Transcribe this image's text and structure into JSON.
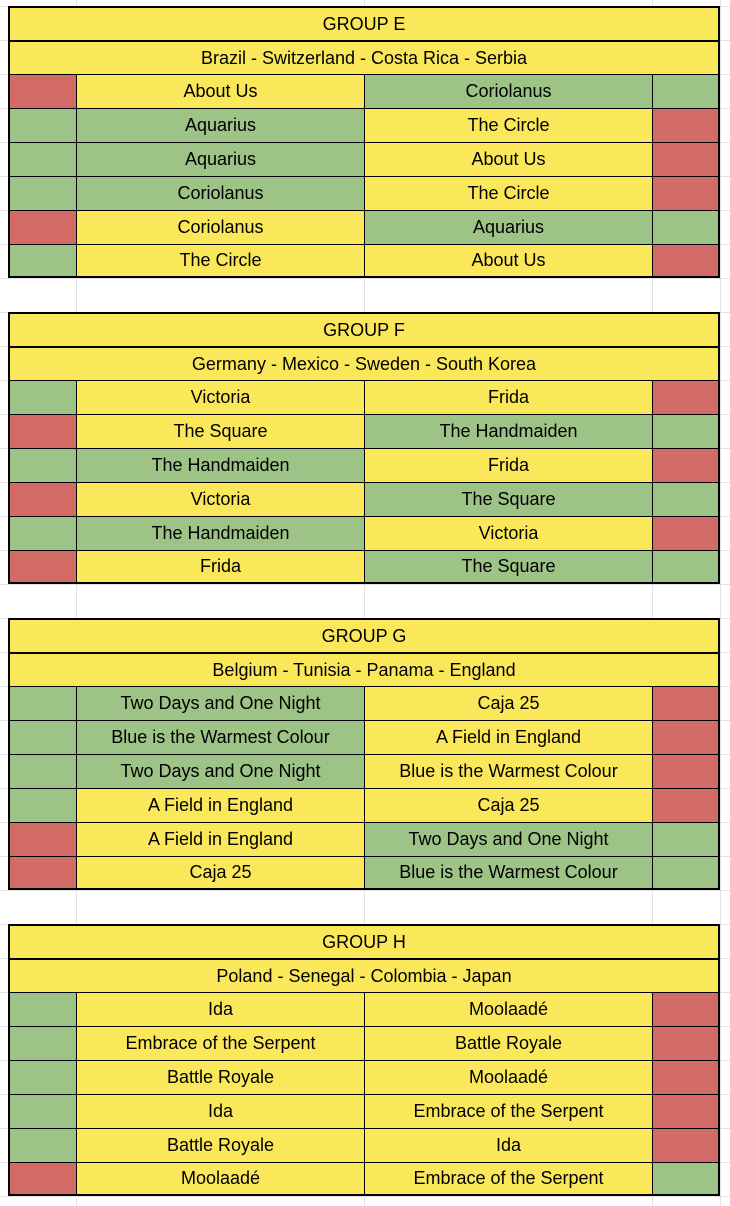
{
  "colors": {
    "yellow": "#fbe85a",
    "green": "#9dc386",
    "red": "#d26b66"
  },
  "groups": [
    {
      "title": "GROUP E",
      "teams": "Brazil - Switzerland - Costa Rica - Serbia",
      "matches": [
        {
          "left": "About Us",
          "right": "Coriolanus",
          "result": [
            "red",
            "yellow",
            "green",
            "green"
          ]
        },
        {
          "left": "Aquarius",
          "right": "The Circle",
          "result": [
            "green",
            "green",
            "yellow",
            "red"
          ]
        },
        {
          "left": "Aquarius",
          "right": "About Us",
          "result": [
            "green",
            "green",
            "yellow",
            "red"
          ]
        },
        {
          "left": "Coriolanus",
          "right": "The Circle",
          "result": [
            "green",
            "green",
            "yellow",
            "red"
          ]
        },
        {
          "left": "Coriolanus",
          "right": "Aquarius",
          "result": [
            "red",
            "yellow",
            "green",
            "green"
          ]
        },
        {
          "left": "The Circle",
          "right": "About Us",
          "result": [
            "green",
            "yellow",
            "yellow",
            "red"
          ]
        }
      ]
    },
    {
      "title": "GROUP F",
      "teams": "Germany - Mexico - Sweden - South Korea",
      "matches": [
        {
          "left": "Victoria",
          "right": "Frida",
          "result": [
            "green",
            "yellow",
            "yellow",
            "red"
          ]
        },
        {
          "left": "The Square",
          "right": "The Handmaiden",
          "result": [
            "red",
            "yellow",
            "green",
            "green"
          ]
        },
        {
          "left": "The Handmaiden",
          "right": "Frida",
          "result": [
            "green",
            "green",
            "yellow",
            "red"
          ]
        },
        {
          "left": "Victoria",
          "right": "The Square",
          "result": [
            "red",
            "yellow",
            "green",
            "green"
          ]
        },
        {
          "left": "The Handmaiden",
          "right": "Victoria",
          "result": [
            "green",
            "green",
            "yellow",
            "red"
          ]
        },
        {
          "left": "Frida",
          "right": "The Square",
          "result": [
            "red",
            "yellow",
            "green",
            "green"
          ]
        }
      ]
    },
    {
      "title": "GROUP G",
      "teams": "Belgium - Tunisia - Panama - England",
      "matches": [
        {
          "left": "Two Days and One Night",
          "right": "Caja 25",
          "result": [
            "green",
            "green",
            "yellow",
            "red"
          ]
        },
        {
          "left": "Blue is the Warmest Colour",
          "right": "A Field in England",
          "result": [
            "green",
            "green",
            "yellow",
            "red"
          ]
        },
        {
          "left": "Two Days and One Night",
          "right": "Blue is the Warmest Colour",
          "result": [
            "green",
            "green",
            "yellow",
            "red"
          ]
        },
        {
          "left": "A Field in England",
          "right": "Caja 25",
          "result": [
            "green",
            "yellow",
            "yellow",
            "red"
          ]
        },
        {
          "left": "A Field in England",
          "right": "Two Days and One Night",
          "result": [
            "red",
            "yellow",
            "green",
            "green"
          ]
        },
        {
          "left": "Caja 25",
          "right": "Blue is the Warmest Colour",
          "result": [
            "red",
            "yellow",
            "green",
            "green"
          ]
        }
      ]
    },
    {
      "title": "GROUP H",
      "teams": "Poland - Senegal - Colombia - Japan",
      "matches": [
        {
          "left": "Ida",
          "right": "Moolaadé",
          "result": [
            "green",
            "yellow",
            "yellow",
            "red"
          ]
        },
        {
          "left": "Embrace of the Serpent",
          "right": "Battle Royale",
          "result": [
            "green",
            "yellow",
            "yellow",
            "red"
          ]
        },
        {
          "left": "Battle Royale",
          "right": "Moolaadé",
          "result": [
            "green",
            "yellow",
            "yellow",
            "red"
          ]
        },
        {
          "left": "Ida",
          "right": "Embrace of the Serpent",
          "result": [
            "green",
            "yellow",
            "yellow",
            "red"
          ]
        },
        {
          "left": "Battle Royale",
          "right": "Ida",
          "result": [
            "green",
            "yellow",
            "yellow",
            "red"
          ]
        },
        {
          "left": "Moolaadé",
          "right": "Embrace of the Serpent",
          "result": [
            "red",
            "yellow",
            "yellow",
            "green"
          ]
        }
      ]
    }
  ]
}
